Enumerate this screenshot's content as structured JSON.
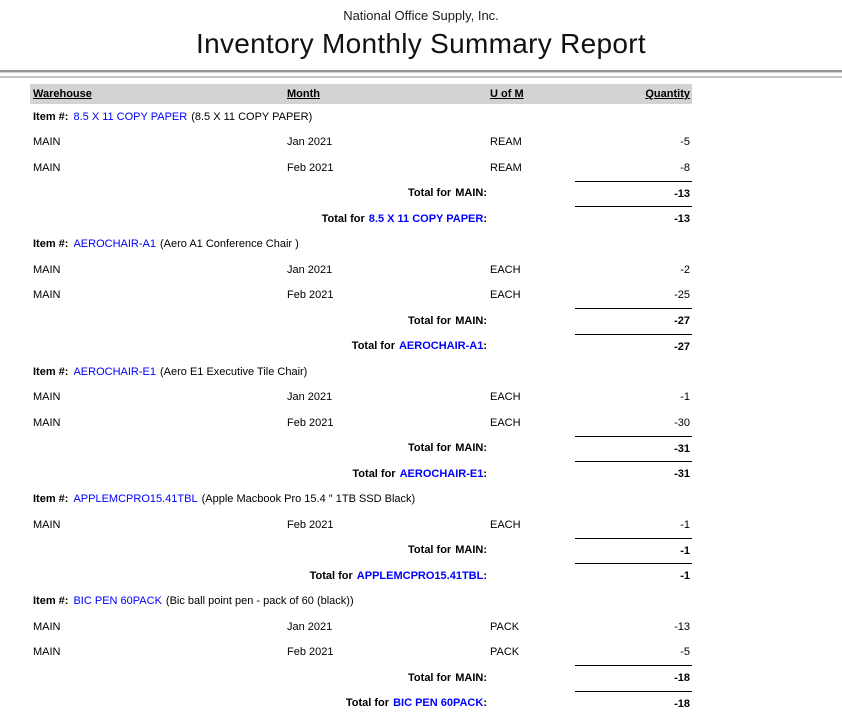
{
  "report": {
    "company_name": "National Office Supply, Inc.",
    "title": "Inventory Monthly Summary Report",
    "columns": {
      "warehouse": "Warehouse",
      "month": "Month",
      "uom": "U of M",
      "quantity": "Quantity"
    },
    "labels": {
      "item_prefix": "Item #:",
      "total_prefix": "Total for",
      "colon": ":"
    },
    "colors": {
      "link_blue": "#0000ff",
      "header_bg": "#d3d3d3",
      "rule_gray": "#969696"
    },
    "items": [
      {
        "number": "8.5 X 11 COPY PAPER",
        "description": "(8.5 X 11 COPY PAPER)",
        "rows": [
          {
            "warehouse": "MAIN",
            "month": "Jan 2021",
            "uom": "REAM",
            "quantity": "-5"
          },
          {
            "warehouse": "MAIN",
            "month": "Feb 2021",
            "uom": "REAM",
            "quantity": "-8"
          }
        ],
        "warehouse_total": {
          "name": "MAIN",
          "value": "-13"
        },
        "item_total": {
          "value": "-13"
        }
      },
      {
        "number": "AEROCHAIR-A1",
        "description": "(Aero A1 Conference Chair )",
        "rows": [
          {
            "warehouse": "MAIN",
            "month": "Jan 2021",
            "uom": "EACH",
            "quantity": "-2"
          },
          {
            "warehouse": "MAIN",
            "month": "Feb 2021",
            "uom": "EACH",
            "quantity": "-25"
          }
        ],
        "warehouse_total": {
          "name": "MAIN",
          "value": "-27"
        },
        "item_total": {
          "value": "-27"
        }
      },
      {
        "number": "AEROCHAIR-E1",
        "description": "(Aero E1 Executive Tile Chair)",
        "rows": [
          {
            "warehouse": "MAIN",
            "month": "Jan 2021",
            "uom": "EACH",
            "quantity": "-1"
          },
          {
            "warehouse": "MAIN",
            "month": "Feb 2021",
            "uom": "EACH",
            "quantity": "-30"
          }
        ],
        "warehouse_total": {
          "name": "MAIN",
          "value": "-31"
        },
        "item_total": {
          "value": "-31"
        }
      },
      {
        "number": "APPLEMCPRO15.41TBL",
        "description": "(Apple Macbook Pro 15.4 \" 1TB SSD Black)",
        "rows": [
          {
            "warehouse": "MAIN",
            "month": "Feb 2021",
            "uom": "EACH",
            "quantity": "-1"
          }
        ],
        "warehouse_total": {
          "name": "MAIN",
          "value": "-1"
        },
        "item_total": {
          "value": "-1"
        }
      },
      {
        "number": "BIC PEN 60PACK",
        "description": "(Bic ball point pen - pack of 60 (black))",
        "rows": [
          {
            "warehouse": "MAIN",
            "month": "Jan 2021",
            "uom": "PACK",
            "quantity": "-13"
          },
          {
            "warehouse": "MAIN",
            "month": "Feb 2021",
            "uom": "PACK",
            "quantity": "-5"
          }
        ],
        "warehouse_total": {
          "name": "MAIN",
          "value": "-18"
        },
        "item_total": {
          "value": "-18"
        }
      }
    ]
  }
}
